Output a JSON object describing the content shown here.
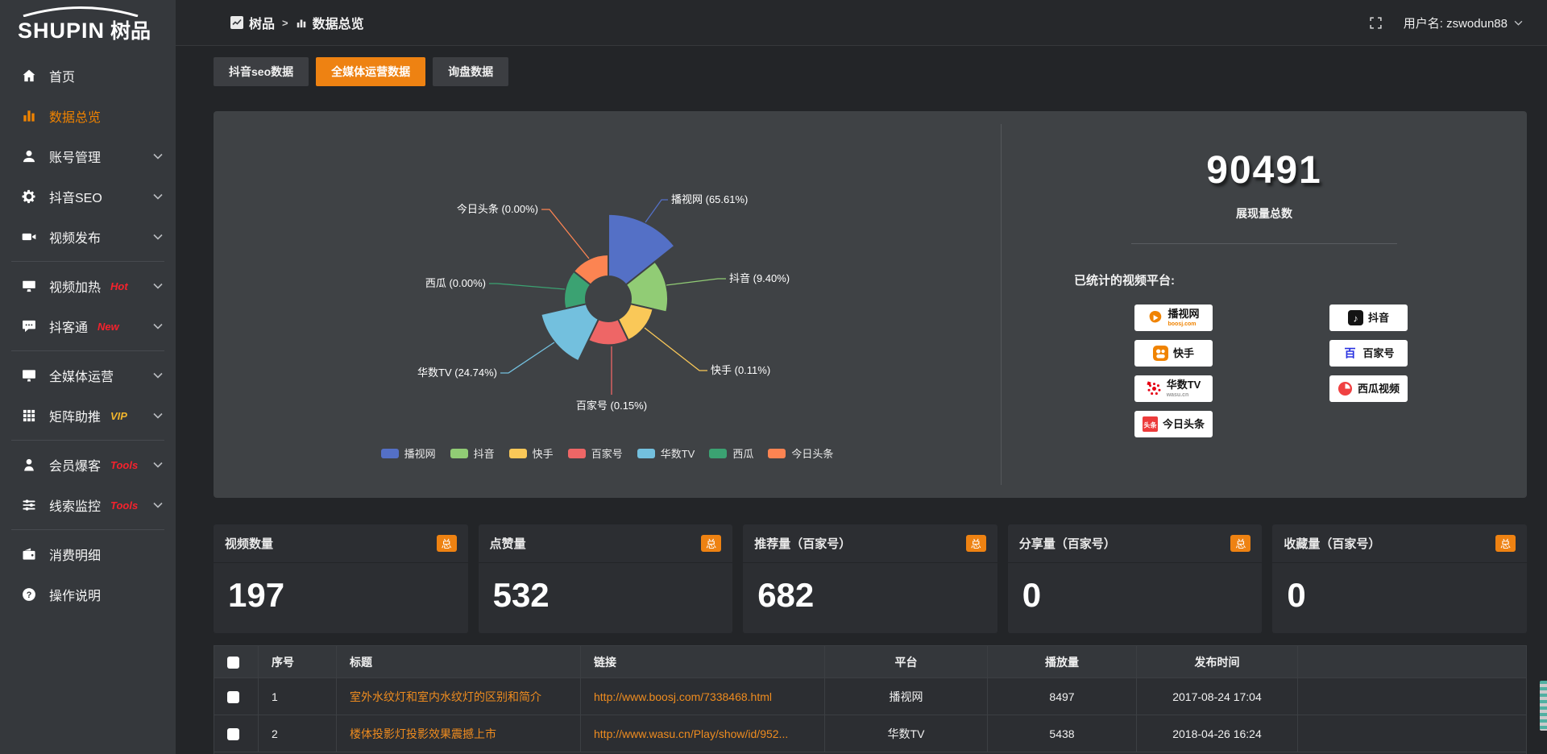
{
  "colors": {
    "accent": "#ee8212",
    "link": "#ef8c1f",
    "sidebar_active": "#f08300",
    "hot_badge": "#f5222d",
    "vip_badge": "#f0b52d"
  },
  "brand": {
    "name": "SHUPIN",
    "name_cn": "树品"
  },
  "topbar": {
    "breadcrumb": [
      "树品",
      "数据总览"
    ],
    "username": "用户名: zswodun88"
  },
  "sidebar": {
    "groups": [
      [
        {
          "icon": "home-icon",
          "label": "首页",
          "active": false,
          "badge": null,
          "chevron": false
        },
        {
          "icon": "chart-icon",
          "label": "数据总览",
          "active": true,
          "badge": null,
          "chevron": false
        },
        {
          "icon": "user-icon",
          "label": "账号管理",
          "active": false,
          "badge": null,
          "chevron": true
        },
        {
          "icon": "gear-icon",
          "label": "抖音SEO",
          "active": false,
          "badge": null,
          "chevron": true
        },
        {
          "icon": "video-icon",
          "label": "视频发布",
          "active": false,
          "badge": null,
          "chevron": true
        }
      ],
      [
        {
          "icon": "heat-icon",
          "label": "视频加热",
          "active": false,
          "badge": "Hot",
          "badge_color": "#f5222d",
          "chevron": true
        },
        {
          "icon": "chat-icon",
          "label": "抖客通",
          "active": false,
          "badge": "New",
          "badge_color": "#f5222d",
          "chevron": true
        }
      ],
      [
        {
          "icon": "monitor-icon",
          "label": "全媒体运营",
          "active": false,
          "badge": null,
          "chevron": true
        },
        {
          "icon": "grid-icon",
          "label": "矩阵助推",
          "active": false,
          "badge": "VIP",
          "badge_color": "#f0b52d",
          "chevron": true
        }
      ],
      [
        {
          "icon": "member-icon",
          "label": "会员爆客",
          "active": false,
          "badge": "Tools",
          "badge_color": "#f5222d",
          "chevron": true
        },
        {
          "icon": "sliders-icon",
          "label": "线索监控",
          "active": false,
          "badge": "Tools",
          "badge_color": "#f5222d",
          "chevron": true
        }
      ],
      [
        {
          "icon": "wallet-icon",
          "label": "消费明细",
          "active": false,
          "badge": null,
          "chevron": false
        },
        {
          "icon": "help-icon",
          "label": "操作说明",
          "active": false,
          "badge": null,
          "chevron": false
        }
      ]
    ]
  },
  "tabs": [
    {
      "label": "抖音seo数据",
      "active": false
    },
    {
      "label": "全媒体运营数据",
      "active": true
    },
    {
      "label": "询盘数据",
      "active": false
    }
  ],
  "chart_data": {
    "type": "pie",
    "variant": "nightingale-rose",
    "legend_position": "bottom",
    "slices": [
      {
        "name": "播视网",
        "pct": 65.61,
        "color": "#5470c6"
      },
      {
        "name": "抖音",
        "pct": 9.4,
        "color": "#91cc75"
      },
      {
        "name": "快手",
        "pct": 0.11,
        "color": "#fac858"
      },
      {
        "name": "百家号",
        "pct": 0.15,
        "color": "#ee6666"
      },
      {
        "name": "华数TV",
        "pct": 24.74,
        "color": "#73c0de"
      },
      {
        "name": "西瓜",
        "pct": 0.0,
        "color": "#3ba272"
      },
      {
        "name": "今日头条",
        "pct": 0.0,
        "color": "#fc8452"
      }
    ]
  },
  "summary": {
    "total": "90491",
    "total_label": "展现量总数",
    "platforms_label": "已统计的视频平台:",
    "platform_columns": [
      [
        {
          "icon": "boosj-icon",
          "name": "播视网",
          "sub": "boosj.com",
          "sub_color": "#f08300"
        },
        {
          "icon": "kuaishou-icon",
          "name": "快手"
        },
        {
          "icon": "wasu-icon",
          "name": "华数TV",
          "sub": "wasu.cn",
          "sub_color": "#9a9a9a"
        },
        {
          "icon": "toutiao-icon",
          "name": "今日头条"
        }
      ],
      [
        {
          "icon": "douyin-icon",
          "name": "抖音"
        },
        {
          "icon": "baijiahao-icon",
          "name": "百家号"
        },
        {
          "icon": "xigua-icon",
          "name": "西瓜视频"
        }
      ]
    ]
  },
  "stats": [
    {
      "label": "视频数量",
      "badge": "总",
      "value": "197"
    },
    {
      "label": "点赞量",
      "badge": "总",
      "value": "532"
    },
    {
      "label": "推荐量（百家号）",
      "badge": "总",
      "value": "682"
    },
    {
      "label": "分享量（百家号）",
      "badge": "总",
      "value": "0"
    },
    {
      "label": "收藏量（百家号）",
      "badge": "总",
      "value": "0"
    }
  ],
  "table": {
    "columns": [
      "序号",
      "标题",
      "链接",
      "平台",
      "播放量",
      "发布时间"
    ],
    "rows": [
      {
        "seq": "1",
        "title": "室外水纹灯和室内水纹灯的区别和简介",
        "link": "http://www.boosj.com/7338468.html",
        "platform": "播视网",
        "plays": "8497",
        "time": "2017-08-24 17:04"
      },
      {
        "seq": "2",
        "title": "楼体投影灯投影效果震撼上市",
        "link": "http://www.wasu.cn/Play/show/id/952...",
        "platform": "华数TV",
        "plays": "5438",
        "time": "2018-04-26 16:24"
      }
    ]
  }
}
